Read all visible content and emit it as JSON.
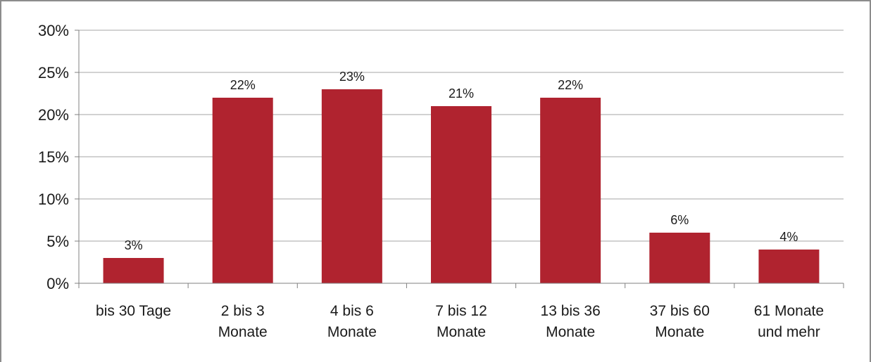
{
  "chart_data": {
    "type": "bar",
    "categories": [
      [
        "bis 30 Tage"
      ],
      [
        "2 bis 3",
        "Monate"
      ],
      [
        "4 bis 6",
        "Monate"
      ],
      [
        "7 bis 12",
        "Monate"
      ],
      [
        "13 bis 36",
        "Monate"
      ],
      [
        "37 bis 60",
        "Monate"
      ],
      [
        "61 Monate",
        "und mehr"
      ]
    ],
    "values": [
      3,
      22,
      23,
      21,
      22,
      6,
      4
    ],
    "data_labels": [
      "3%",
      "22%",
      "23%",
      "21%",
      "22%",
      "6%",
      "4%"
    ],
    "yticks": [
      0,
      5,
      10,
      15,
      20,
      25,
      30
    ],
    "ytick_labels": [
      "0%",
      "5%",
      "10%",
      "15%",
      "20%",
      "25%",
      "30%"
    ],
    "ylim": [
      0,
      30
    ],
    "grid": true,
    "bar_color": "#b0232f",
    "grid_color": "#a6a6a6"
  }
}
